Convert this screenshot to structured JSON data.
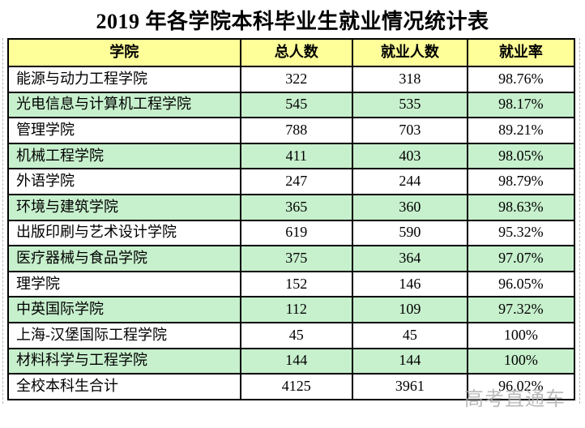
{
  "title": "2019 年各学院本科毕业生就业情况统计表",
  "watermark": "高考直通车",
  "colors": {
    "header_bg": "#ffff99",
    "row_alt_bg": "#c7f0cd",
    "border": "#000000",
    "watermark": "#aeaeae"
  },
  "table": {
    "headers": [
      "学院",
      "总人数",
      "就业人数",
      "就业率"
    ],
    "rows": [
      {
        "college": "能源与动力工程学院",
        "total": "322",
        "employed": "318",
        "rate": "98.76%"
      },
      {
        "college": "光电信息与计算机工程学院",
        "total": "545",
        "employed": "535",
        "rate": "98.17%"
      },
      {
        "college": "管理学院",
        "total": "788",
        "employed": "703",
        "rate": "89.21%"
      },
      {
        "college": "机械工程学院",
        "total": "411",
        "employed": "403",
        "rate": "98.05%"
      },
      {
        "college": "外语学院",
        "total": "247",
        "employed": "244",
        "rate": "98.79%"
      },
      {
        "college": "环境与建筑学院",
        "total": "365",
        "employed": "360",
        "rate": "98.63%"
      },
      {
        "college": "出版印刷与艺术设计学院",
        "total": "619",
        "employed": "590",
        "rate": "95.32%"
      },
      {
        "college": "医疗器械与食品学院",
        "total": "375",
        "employed": "364",
        "rate": "97.07%"
      },
      {
        "college": "理学院",
        "total": "152",
        "employed": "146",
        "rate": "96.05%"
      },
      {
        "college": "中英国际学院",
        "total": "112",
        "employed": "109",
        "rate": "97.32%"
      },
      {
        "college": "上海-汉堡国际工程学院",
        "total": "45",
        "employed": "45",
        "rate": "100%"
      },
      {
        "college": "材料科学与工程学院",
        "total": "144",
        "employed": "144",
        "rate": "100%"
      },
      {
        "college": "全校本科生合计",
        "total": "4125",
        "employed": "3961",
        "rate": "96.02%"
      }
    ]
  }
}
